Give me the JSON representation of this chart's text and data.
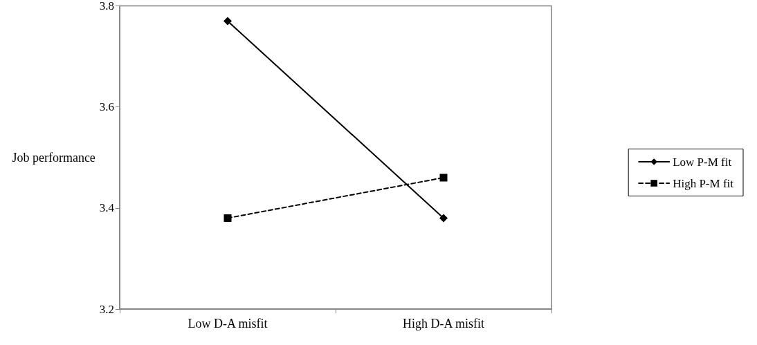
{
  "chart_data": {
    "type": "line",
    "ylabel": "Job performance",
    "categories": [
      "Low D-A misfit",
      "High D-A misfit"
    ],
    "series": [
      {
        "name": "Low P-M fit",
        "color": "#000000",
        "values": [
          3.77,
          3.38
        ],
        "marker": "diamond",
        "line_style": "solid"
      },
      {
        "name": "High P-M fit",
        "color": "#000000",
        "values": [
          3.38,
          3.46
        ],
        "marker": "square",
        "line_style": "dashed"
      }
    ],
    "ylim": [
      3.2,
      3.8
    ],
    "yticks": [
      3.2,
      3.4,
      3.6,
      3.8
    ],
    "grid": false,
    "legend": "right"
  }
}
